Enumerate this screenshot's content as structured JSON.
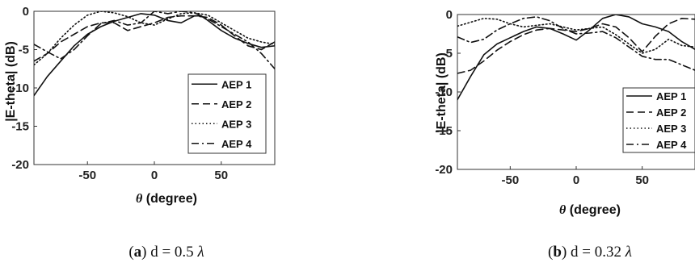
{
  "chart_data": [
    {
      "type": "line",
      "panel_letter": "a",
      "caption_rest": " d = 0.5 ",
      "caption_symbol": "λ",
      "xlabel_symbol": "θ",
      "xlabel_text": " (degree)",
      "ylabel": "|E-theta| (dB)",
      "xlim": [
        -90,
        90
      ],
      "ylim": [
        -20,
        0
      ],
      "xticks": [
        -50,
        0,
        50
      ],
      "yticks": [
        0,
        -5,
        -10,
        -15,
        -20
      ],
      "legend_placement": "center-right",
      "series": [
        {
          "name": "AEP 1",
          "style": "solid",
          "x": [
            -90,
            -80,
            -70,
            -60,
            -50,
            -40,
            -30,
            -20,
            -10,
            0,
            10,
            20,
            30,
            35,
            40,
            50,
            60,
            70,
            80,
            90
          ],
          "y": [
            -11,
            -8.5,
            -6.5,
            -4.5,
            -3,
            -2,
            -1.3,
            -0.8,
            -0.3,
            -0.5,
            -1.2,
            -1.5,
            -0.6,
            -0.6,
            -1.2,
            -2.5,
            -3.5,
            -4.2,
            -4.7,
            -4.5
          ]
        },
        {
          "name": "AEP 2",
          "style": "dashed",
          "x": [
            -90,
            -80,
            -70,
            -60,
            -50,
            -40,
            -30,
            -20,
            -10,
            0,
            10,
            20,
            30,
            40,
            50,
            60,
            70,
            80,
            90
          ],
          "y": [
            -6.5,
            -5.5,
            -4,
            -3,
            -2,
            -1.5,
            -1.5,
            -2.5,
            -2,
            -1.5,
            -0.8,
            -0.6,
            -0.6,
            -0.8,
            -1.8,
            -3.2,
            -4.5,
            -5,
            -4
          ]
        },
        {
          "name": "AEP 3",
          "style": "dotted",
          "x": [
            -90,
            -80,
            -70,
            -60,
            -50,
            -40,
            -30,
            -20,
            -10,
            0,
            10,
            20,
            30,
            40,
            50,
            60,
            70,
            80,
            90
          ],
          "y": [
            -7,
            -5.5,
            -3.5,
            -1.8,
            -0.5,
            0,
            -0.2,
            -0.7,
            -1.5,
            -1.8,
            -1,
            -0.3,
            -0.2,
            -0.5,
            -1.5,
            -2.5,
            -3.5,
            -4,
            -4.3
          ]
        },
        {
          "name": "AEP 4",
          "style": "dashdot",
          "x": [
            -90,
            -80,
            -70,
            -60,
            -50,
            -40,
            -30,
            -20,
            -10,
            0,
            10,
            20,
            30,
            40,
            50,
            60,
            70,
            80,
            90
          ],
          "y": [
            -4.3,
            -5.3,
            -6.2,
            -5,
            -3.2,
            -1.6,
            -1.2,
            -1.8,
            -1.5,
            0,
            -0.3,
            0,
            -0.2,
            -1,
            -2,
            -3,
            -4,
            -5.5,
            -7.5
          ]
        }
      ]
    },
    {
      "type": "line",
      "panel_letter": "b",
      "caption_rest": " d = 0.32 ",
      "caption_symbol": "λ",
      "xlabel_symbol": "θ",
      "xlabel_text": " (degree)",
      "ylabel": "|E-theta| (dB)",
      "xlim": [
        -90,
        90
      ],
      "ylim": [
        -20,
        0
      ],
      "xticks": [
        -50,
        0,
        50
      ],
      "yticks": [
        0,
        -5,
        -10,
        -15,
        -20
      ],
      "legend_placement": "bottom-right",
      "series": [
        {
          "name": "AEP 1",
          "style": "solid",
          "x": [
            -90,
            -80,
            -70,
            -60,
            -50,
            -40,
            -30,
            -20,
            -10,
            0,
            10,
            20,
            30,
            40,
            50,
            60,
            70,
            80,
            90
          ],
          "y": [
            -11,
            -8,
            -5.2,
            -3.8,
            -3,
            -2.2,
            -1.6,
            -1.8,
            -2.5,
            -3.3,
            -2,
            -0.5,
            0,
            -0.3,
            -1.2,
            -1.6,
            -2.2,
            -3.5,
            -4.5
          ]
        },
        {
          "name": "AEP 2",
          "style": "dashed",
          "x": [
            -90,
            -80,
            -70,
            -60,
            -50,
            -40,
            -30,
            -20,
            -10,
            0,
            10,
            20,
            30,
            40,
            50,
            60,
            70,
            80,
            90
          ],
          "y": [
            -7.6,
            -7.2,
            -6,
            -4.6,
            -3.5,
            -2.6,
            -2,
            -1.8,
            -2,
            -2.2,
            -1.8,
            -1.2,
            -1.6,
            -3,
            -4.8,
            -2.8,
            -1.2,
            -0.5,
            -0.6
          ]
        },
        {
          "name": "AEP 3",
          "style": "dotted",
          "x": [
            -90,
            -80,
            -70,
            -60,
            -50,
            -40,
            -30,
            -20,
            -10,
            0,
            10,
            20,
            30,
            40,
            50,
            60,
            70,
            80,
            90
          ],
          "y": [
            -1.5,
            -1,
            -0.5,
            -0.6,
            -1.2,
            -1.6,
            -1.4,
            -1.2,
            -1.6,
            -2,
            -1.8,
            -1.6,
            -2.6,
            -3.8,
            -5,
            -4.5,
            -3.2,
            -4,
            -4.2
          ]
        },
        {
          "name": "AEP 4",
          "style": "dashdot",
          "x": [
            -90,
            -80,
            -70,
            -60,
            -50,
            -40,
            -30,
            -20,
            -10,
            0,
            10,
            20,
            30,
            40,
            50,
            60,
            70,
            80,
            90
          ],
          "y": [
            -2.9,
            -3.6,
            -3.2,
            -2,
            -1.2,
            -0.5,
            -0.3,
            -0.8,
            -1.8,
            -2.5,
            -2.4,
            -2.2,
            -3,
            -4.2,
            -5.4,
            -5.8,
            -5.8,
            -6.5,
            -7.2
          ]
        }
      ]
    }
  ]
}
